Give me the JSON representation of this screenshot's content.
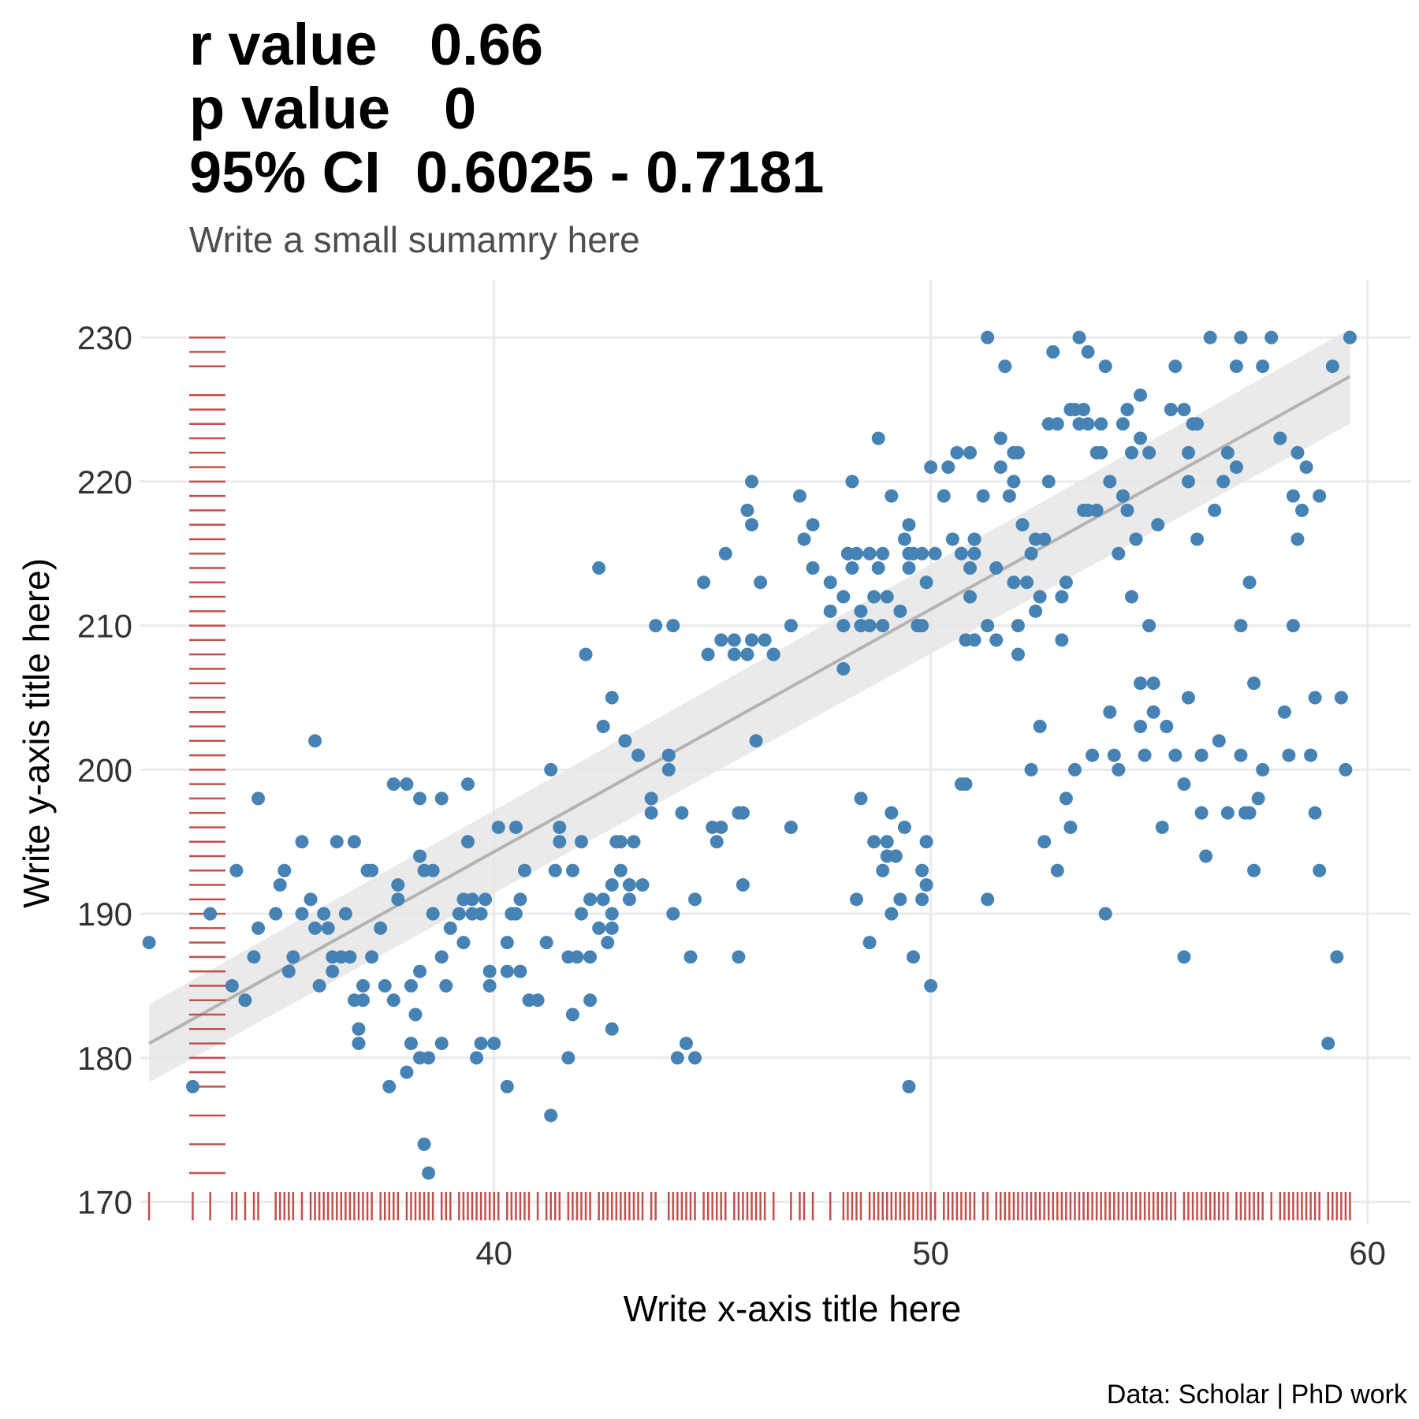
{
  "title": {
    "r_label": "r value",
    "r_value": "0.66",
    "p_label": "p value",
    "p_value": "0",
    "ci_label": "95% CI",
    "ci_value": "0.6025 - 0.7181"
  },
  "subtitle": "Write a small sumamry here",
  "caption": "Data: Scholar | PhD work",
  "colors": {
    "points": "#4682b4",
    "rug": "#c0504d",
    "fit_line": "#b3b3b3",
    "band": "#e6e6e6"
  },
  "chart_data": {
    "type": "scatter",
    "xlabel": "Write x-axis title here",
    "ylabel": "Write y-axis title here)",
    "xlim": [
      31.9,
      61
    ],
    "ylim": [
      168.5,
      234
    ],
    "x_ticks": [
      "40",
      "50",
      "60"
    ],
    "y_ticks": [
      "170",
      "180",
      "190",
      "200",
      "210",
      "220",
      "230"
    ],
    "grid": true,
    "rug": [
      "x",
      "y"
    ],
    "fit": {
      "method": "linear",
      "start": [
        32.1,
        181
      ],
      "end": [
        59.6,
        227.3
      ],
      "ci_start": [
        178.3,
        183.7
      ],
      "ci_end": [
        224,
        230.6
      ]
    },
    "points": [
      [
        32.1,
        188
      ],
      [
        33.1,
        178
      ],
      [
        33.5,
        190
      ],
      [
        34.0,
        185
      ],
      [
        34.1,
        193
      ],
      [
        34.3,
        184
      ],
      [
        34.5,
        187
      ],
      [
        34.6,
        198
      ],
      [
        34.6,
        189
      ],
      [
        35.0,
        190
      ],
      [
        35.1,
        192
      ],
      [
        35.2,
        193
      ],
      [
        35.3,
        186
      ],
      [
        35.4,
        187
      ],
      [
        35.6,
        195
      ],
      [
        35.6,
        190
      ],
      [
        35.8,
        191
      ],
      [
        35.9,
        202
      ],
      [
        35.9,
        189
      ],
      [
        36.0,
        185
      ],
      [
        36.1,
        190
      ],
      [
        36.2,
        189
      ],
      [
        36.3,
        187
      ],
      [
        36.3,
        186
      ],
      [
        36.4,
        195
      ],
      [
        36.5,
        187
      ],
      [
        36.6,
        190
      ],
      [
        36.7,
        187
      ],
      [
        36.8,
        195
      ],
      [
        36.8,
        184
      ],
      [
        36.9,
        182
      ],
      [
        36.9,
        181
      ],
      [
        37.0,
        185
      ],
      [
        37.0,
        184
      ],
      [
        37.1,
        193
      ],
      [
        37.2,
        193
      ],
      [
        37.2,
        187
      ],
      [
        37.4,
        189
      ],
      [
        37.5,
        185
      ],
      [
        37.6,
        178
      ],
      [
        37.7,
        184
      ],
      [
        37.7,
        199
      ],
      [
        37.8,
        192
      ],
      [
        37.8,
        191
      ],
      [
        38.0,
        199
      ],
      [
        38.0,
        179
      ],
      [
        38.1,
        185
      ],
      [
        38.1,
        181
      ],
      [
        38.2,
        183
      ],
      [
        38.3,
        198
      ],
      [
        38.3,
        194
      ],
      [
        38.3,
        186
      ],
      [
        38.3,
        180
      ],
      [
        38.4,
        174
      ],
      [
        38.4,
        193
      ],
      [
        38.5,
        180
      ],
      [
        38.5,
        172
      ],
      [
        38.6,
        190
      ],
      [
        38.6,
        193
      ],
      [
        38.8,
        198
      ],
      [
        38.8,
        187
      ],
      [
        38.8,
        181
      ],
      [
        38.9,
        185
      ],
      [
        39.0,
        189
      ],
      [
        39.2,
        190
      ],
      [
        39.3,
        191
      ],
      [
        39.3,
        188
      ],
      [
        39.4,
        199
      ],
      [
        39.4,
        195
      ],
      [
        39.5,
        190
      ],
      [
        39.5,
        191
      ],
      [
        39.6,
        180
      ],
      [
        39.7,
        181
      ],
      [
        39.7,
        190
      ],
      [
        39.8,
        191
      ],
      [
        39.9,
        185
      ],
      [
        39.9,
        186
      ],
      [
        40.0,
        181
      ],
      [
        40.1,
        196
      ],
      [
        40.3,
        178
      ],
      [
        40.3,
        188
      ],
      [
        40.3,
        186
      ],
      [
        40.4,
        190
      ],
      [
        40.5,
        190
      ],
      [
        40.5,
        196
      ],
      [
        40.6,
        191
      ],
      [
        40.6,
        186
      ],
      [
        40.7,
        193
      ],
      [
        40.8,
        184
      ],
      [
        41.0,
        184
      ],
      [
        41.2,
        188
      ],
      [
        41.3,
        200
      ],
      [
        41.3,
        176
      ],
      [
        41.4,
        193
      ],
      [
        41.5,
        196
      ],
      [
        41.5,
        195
      ],
      [
        41.7,
        187
      ],
      [
        41.7,
        180
      ],
      [
        41.8,
        193
      ],
      [
        41.8,
        183
      ],
      [
        41.9,
        187
      ],
      [
        42.0,
        190
      ],
      [
        42.0,
        195
      ],
      [
        42.1,
        208
      ],
      [
        42.2,
        184
      ],
      [
        42.2,
        191
      ],
      [
        42.2,
        187
      ],
      [
        42.4,
        189
      ],
      [
        42.4,
        214
      ],
      [
        42.5,
        191
      ],
      [
        42.5,
        203
      ],
      [
        42.6,
        188
      ],
      [
        42.7,
        205
      ],
      [
        42.7,
        192
      ],
      [
        42.7,
        190
      ],
      [
        42.7,
        189
      ],
      [
        42.7,
        182
      ],
      [
        42.8,
        195
      ],
      [
        42.9,
        195
      ],
      [
        42.9,
        193
      ],
      [
        43.0,
        202
      ],
      [
        43.1,
        191
      ],
      [
        43.1,
        192
      ],
      [
        43.2,
        195
      ],
      [
        43.3,
        201
      ],
      [
        43.4,
        192
      ],
      [
        43.6,
        197
      ],
      [
        43.6,
        198
      ],
      [
        43.7,
        210
      ],
      [
        44.0,
        201
      ],
      [
        44.0,
        200
      ],
      [
        44.1,
        210
      ],
      [
        44.1,
        190
      ],
      [
        44.2,
        180
      ],
      [
        44.3,
        197
      ],
      [
        44.4,
        181
      ],
      [
        44.5,
        187
      ],
      [
        44.6,
        191
      ],
      [
        44.6,
        180
      ],
      [
        44.8,
        213
      ],
      [
        44.9,
        208
      ],
      [
        45.0,
        196
      ],
      [
        45.1,
        195
      ],
      [
        45.2,
        196
      ],
      [
        45.2,
        209
      ],
      [
        45.3,
        215
      ],
      [
        45.5,
        208
      ],
      [
        45.5,
        209
      ],
      [
        45.6,
        187
      ],
      [
        45.6,
        197
      ],
      [
        45.7,
        192
      ],
      [
        45.7,
        197
      ],
      [
        45.8,
        208
      ],
      [
        45.8,
        218
      ],
      [
        45.9,
        209
      ],
      [
        45.9,
        220
      ],
      [
        45.9,
        217
      ],
      [
        46.0,
        202
      ],
      [
        46.1,
        213
      ],
      [
        46.2,
        209
      ],
      [
        46.4,
        208
      ],
      [
        46.4,
        208
      ],
      [
        46.8,
        196
      ],
      [
        46.8,
        210
      ],
      [
        47.0,
        219
      ],
      [
        47.1,
        216
      ],
      [
        47.3,
        217
      ],
      [
        47.3,
        214
      ],
      [
        47.7,
        213
      ],
      [
        47.7,
        211
      ],
      [
        48.0,
        210
      ],
      [
        48.0,
        212
      ],
      [
        48.0,
        207
      ],
      [
        48.1,
        215
      ],
      [
        48.1,
        215
      ],
      [
        48.2,
        220
      ],
      [
        48.2,
        214
      ],
      [
        48.3,
        191
      ],
      [
        48.3,
        215
      ],
      [
        48.4,
        210
      ],
      [
        48.4,
        211
      ],
      [
        48.4,
        198
      ],
      [
        48.6,
        188
      ],
      [
        48.6,
        210
      ],
      [
        48.6,
        215
      ],
      [
        48.7,
        212
      ],
      [
        48.7,
        195
      ],
      [
        48.8,
        214
      ],
      [
        48.8,
        223
      ],
      [
        48.9,
        210
      ],
      [
        48.9,
        193
      ],
      [
        48.9,
        215
      ],
      [
        49.0,
        195
      ],
      [
        49.0,
        194
      ],
      [
        49.0,
        212
      ],
      [
        49.1,
        190
      ],
      [
        49.1,
        219
      ],
      [
        49.1,
        197
      ],
      [
        49.2,
        194
      ],
      [
        49.3,
        191
      ],
      [
        49.3,
        211
      ],
      [
        49.4,
        216
      ],
      [
        49.4,
        196
      ],
      [
        49.5,
        214
      ],
      [
        49.5,
        217
      ],
      [
        49.5,
        215
      ],
      [
        49.5,
        178
      ],
      [
        49.6,
        187
      ],
      [
        49.6,
        215
      ],
      [
        49.7,
        210
      ],
      [
        49.7,
        210
      ],
      [
        49.8,
        215
      ],
      [
        49.8,
        191
      ],
      [
        49.8,
        193
      ],
      [
        49.8,
        210
      ],
      [
        49.9,
        192
      ],
      [
        49.9,
        195
      ],
      [
        49.9,
        213
      ],
      [
        50.0,
        185
      ],
      [
        50.0,
        221
      ],
      [
        50.1,
        215
      ],
      [
        50.3,
        219
      ],
      [
        50.4,
        221
      ],
      [
        50.5,
        216
      ],
      [
        50.6,
        222
      ],
      [
        50.7,
        215
      ],
      [
        50.7,
        199
      ],
      [
        50.8,
        209
      ],
      [
        50.8,
        199
      ],
      [
        50.9,
        222
      ],
      [
        50.9,
        214
      ],
      [
        50.9,
        212
      ],
      [
        51.0,
        215
      ],
      [
        51.0,
        216
      ],
      [
        51.0,
        209
      ],
      [
        51.2,
        219
      ],
      [
        51.3,
        230
      ],
      [
        51.3,
        191
      ],
      [
        51.3,
        210
      ],
      [
        51.5,
        209
      ],
      [
        51.5,
        214
      ],
      [
        51.6,
        223
      ],
      [
        51.6,
        221
      ],
      [
        51.7,
        228
      ],
      [
        51.8,
        219
      ],
      [
        51.9,
        220
      ],
      [
        51.9,
        213
      ],
      [
        51.9,
        222
      ],
      [
        52.0,
        222
      ],
      [
        52.0,
        208
      ],
      [
        52.0,
        210
      ],
      [
        52.1,
        217
      ],
      [
        52.2,
        213
      ],
      [
        52.3,
        215
      ],
      [
        52.3,
        200
      ],
      [
        52.4,
        216
      ],
      [
        52.4,
        211
      ],
      [
        52.5,
        212
      ],
      [
        52.5,
        203
      ],
      [
        52.6,
        195
      ],
      [
        52.6,
        216
      ],
      [
        52.7,
        224
      ],
      [
        52.7,
        220
      ],
      [
        52.8,
        229
      ],
      [
        52.9,
        224
      ],
      [
        52.9,
        193
      ],
      [
        53.0,
        212
      ],
      [
        53.0,
        209
      ],
      [
        53.1,
        213
      ],
      [
        53.1,
        198
      ],
      [
        53.2,
        225
      ],
      [
        53.2,
        196
      ],
      [
        53.3,
        225
      ],
      [
        53.3,
        200
      ],
      [
        53.4,
        230
      ],
      [
        53.4,
        224
      ],
      [
        53.5,
        225
      ],
      [
        53.5,
        218
      ],
      [
        53.6,
        218
      ],
      [
        53.6,
        229
      ],
      [
        53.6,
        224
      ],
      [
        53.7,
        201
      ],
      [
        53.8,
        222
      ],
      [
        53.8,
        218
      ],
      [
        53.9,
        224
      ],
      [
        53.9,
        222
      ],
      [
        54.0,
        190
      ],
      [
        54.0,
        228
      ],
      [
        54.1,
        220
      ],
      [
        54.1,
        204
      ],
      [
        54.2,
        201
      ],
      [
        54.3,
        200
      ],
      [
        54.3,
        215
      ],
      [
        54.4,
        224
      ],
      [
        54.4,
        219
      ],
      [
        54.5,
        218
      ],
      [
        54.5,
        225
      ],
      [
        54.6,
        212
      ],
      [
        54.6,
        222
      ],
      [
        54.7,
        216
      ],
      [
        54.8,
        226
      ],
      [
        54.8,
        206
      ],
      [
        54.8,
        203
      ],
      [
        54.8,
        223
      ],
      [
        54.9,
        201
      ],
      [
        55.0,
        210
      ],
      [
        55.0,
        222
      ],
      [
        55.1,
        204
      ],
      [
        55.1,
        206
      ],
      [
        55.2,
        217
      ],
      [
        55.3,
        196
      ],
      [
        55.4,
        203
      ],
      [
        55.5,
        225
      ],
      [
        55.6,
        228
      ],
      [
        55.6,
        201
      ],
      [
        55.8,
        187
      ],
      [
        55.8,
        199
      ],
      [
        55.8,
        225
      ],
      [
        55.9,
        205
      ],
      [
        55.9,
        220
      ],
      [
        55.9,
        222
      ],
      [
        56.0,
        224
      ],
      [
        56.1,
        216
      ],
      [
        56.1,
        224
      ],
      [
        56.2,
        197
      ],
      [
        56.2,
        201
      ],
      [
        56.3,
        194
      ],
      [
        56.4,
        230
      ],
      [
        56.5,
        218
      ],
      [
        56.6,
        202
      ],
      [
        56.7,
        220
      ],
      [
        56.8,
        222
      ],
      [
        56.8,
        197
      ],
      [
        57.0,
        228
      ],
      [
        57.0,
        221
      ],
      [
        57.1,
        210
      ],
      [
        57.1,
        230
      ],
      [
        57.1,
        201
      ],
      [
        57.2,
        197
      ],
      [
        57.3,
        197
      ],
      [
        57.3,
        213
      ],
      [
        57.4,
        193
      ],
      [
        57.4,
        206
      ],
      [
        57.5,
        198
      ],
      [
        57.6,
        200
      ],
      [
        57.6,
        228
      ],
      [
        57.8,
        230
      ],
      [
        58.0,
        223
      ],
      [
        58.1,
        204
      ],
      [
        58.2,
        201
      ],
      [
        58.3,
        219
      ],
      [
        58.3,
        210
      ],
      [
        58.4,
        216
      ],
      [
        58.4,
        222
      ],
      [
        58.5,
        218
      ],
      [
        58.6,
        221
      ],
      [
        58.7,
        201
      ],
      [
        58.8,
        205
      ],
      [
        58.8,
        197
      ],
      [
        58.9,
        193
      ],
      [
        58.9,
        219
      ],
      [
        59.1,
        181
      ],
      [
        59.2,
        228
      ],
      [
        59.3,
        187
      ],
      [
        59.4,
        205
      ],
      [
        59.5,
        200
      ],
      [
        59.6,
        230
      ]
    ]
  }
}
